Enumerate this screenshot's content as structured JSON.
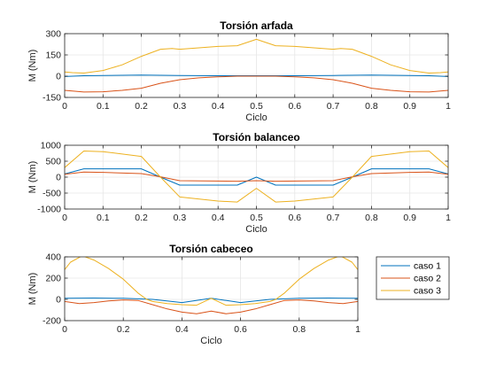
{
  "chart_data": [
    {
      "type": "line",
      "title": "Torsión arfada",
      "xlabel": "Ciclo",
      "ylabel": "M (Nm)",
      "xlim": [
        0,
        1
      ],
      "ylim": [
        -150,
        300
      ],
      "xticks": [
        0,
        0.1,
        0.2,
        0.3,
        0.4,
        0.5,
        0.6,
        0.7,
        0.8,
        0.9,
        1
      ],
      "xtick_labels": [
        "0",
        "0.1",
        "0.2",
        "0.3",
        "0.4",
        "0.5",
        "0.6",
        "0.7",
        "0.8",
        "0.9",
        "1"
      ],
      "yticks": [
        -150,
        0,
        150,
        300
      ],
      "ytick_labels": [
        "-150",
        "0",
        "150",
        "300"
      ],
      "grid": true,
      "series": [
        {
          "name": "caso 1",
          "color": "#0072BD",
          "x": [
            0,
            0.05,
            0.1,
            0.2,
            0.3,
            0.4,
            0.5,
            0.6,
            0.7,
            0.8,
            0.9,
            0.95,
            1
          ],
          "y": [
            -2,
            3,
            5,
            8,
            5,
            3,
            3,
            3,
            5,
            8,
            5,
            3,
            -2
          ]
        },
        {
          "name": "caso 2",
          "color": "#D95319",
          "x": [
            0,
            0.05,
            0.1,
            0.15,
            0.2,
            0.25,
            0.3,
            0.35,
            0.4,
            0.45,
            0.5,
            0.55,
            0.6,
            0.65,
            0.7,
            0.75,
            0.8,
            0.85,
            0.9,
            0.95,
            1
          ],
          "y": [
            -100,
            -112,
            -110,
            -100,
            -85,
            -50,
            -25,
            -12,
            -5,
            0,
            0,
            0,
            -5,
            -12,
            -25,
            -50,
            -85,
            -100,
            -110,
            -112,
            -100
          ]
        },
        {
          "name": "caso 3",
          "color": "#EDB120",
          "x": [
            0,
            0.02,
            0.05,
            0.1,
            0.15,
            0.2,
            0.25,
            0.28,
            0.3,
            0.35,
            0.4,
            0.45,
            0.5,
            0.55,
            0.6,
            0.65,
            0.7,
            0.72,
            0.75,
            0.8,
            0.85,
            0.9,
            0.95,
            0.98,
            1
          ],
          "y": [
            30,
            25,
            22,
            40,
            80,
            140,
            190,
            195,
            190,
            200,
            210,
            215,
            260,
            215,
            210,
            200,
            190,
            195,
            190,
            140,
            80,
            40,
            22,
            25,
            30
          ]
        }
      ]
    },
    {
      "type": "line",
      "title": "Torsión balanceo",
      "xlabel": "Ciclo",
      "ylabel": "M (Nm)",
      "xlim": [
        0,
        1
      ],
      "ylim": [
        -1000,
        1000
      ],
      "xticks": [
        0,
        0.1,
        0.2,
        0.3,
        0.4,
        0.5,
        0.6,
        0.7,
        0.8,
        0.9,
        1
      ],
      "xtick_labels": [
        "0",
        "0.1",
        "0.2",
        "0.3",
        "0.4",
        "0.5",
        "0.6",
        "0.7",
        "0.8",
        "0.9",
        "1"
      ],
      "yticks": [
        -1000,
        -500,
        0,
        500,
        1000
      ],
      "ytick_labels": [
        "-1000",
        "-500",
        "0",
        "500",
        "1000"
      ],
      "grid": true,
      "series": [
        {
          "name": "caso 1",
          "color": "#0072BD",
          "x": [
            0,
            0.05,
            0.1,
            0.2,
            0.25,
            0.3,
            0.45,
            0.5,
            0.55,
            0.7,
            0.75,
            0.8,
            0.9,
            0.95,
            1
          ],
          "y": [
            100,
            260,
            260,
            260,
            0,
            -250,
            -250,
            0,
            -250,
            -250,
            0,
            260,
            260,
            260,
            100
          ]
        },
        {
          "name": "caso 2",
          "color": "#D95319",
          "x": [
            0,
            0.05,
            0.1,
            0.2,
            0.25,
            0.3,
            0.45,
            0.5,
            0.55,
            0.7,
            0.75,
            0.8,
            0.9,
            0.95,
            1
          ],
          "y": [
            90,
            160,
            150,
            110,
            10,
            -110,
            -130,
            -110,
            -130,
            -110,
            10,
            110,
            150,
            160,
            90
          ]
        },
        {
          "name": "caso 3",
          "color": "#EDB120",
          "x": [
            0,
            0.05,
            0.1,
            0.2,
            0.25,
            0.3,
            0.4,
            0.45,
            0.5,
            0.55,
            0.6,
            0.7,
            0.75,
            0.8,
            0.9,
            0.95,
            1
          ],
          "y": [
            300,
            820,
            800,
            650,
            0,
            -620,
            -750,
            -780,
            -350,
            -780,
            -750,
            -620,
            0,
            650,
            800,
            820,
            300
          ]
        }
      ]
    },
    {
      "type": "line",
      "title": "Torsión cabeceo",
      "xlabel": "Ciclo",
      "ylabel": "M (Nm)",
      "xlim": [
        0,
        1
      ],
      "ylim": [
        -200,
        400
      ],
      "xticks": [
        0,
        0.2,
        0.4,
        0.6,
        0.8,
        1
      ],
      "xtick_labels": [
        "0",
        "0.2",
        "0.4",
        "0.6",
        "0.8",
        "1"
      ],
      "yticks": [
        -200,
        0,
        200,
        400
      ],
      "ytick_labels": [
        "-200",
        "0",
        "200",
        "400"
      ],
      "grid": true,
      "legend": {
        "placement": "outside-right",
        "entries": [
          "caso 1",
          "caso 2",
          "caso 3"
        ]
      },
      "series": [
        {
          "name": "caso 1",
          "color": "#0072BD",
          "x": [
            0,
            0.1,
            0.2,
            0.3,
            0.4,
            0.5,
            0.6,
            0.7,
            0.8,
            0.9,
            1
          ],
          "y": [
            10,
            12,
            10,
            0,
            -30,
            10,
            -30,
            0,
            10,
            12,
            10
          ]
        },
        {
          "name": "caso 2",
          "color": "#D95319",
          "x": [
            0,
            0.05,
            0.1,
            0.15,
            0.2,
            0.25,
            0.3,
            0.35,
            0.4,
            0.45,
            0.5,
            0.55,
            0.6,
            0.65,
            0.7,
            0.75,
            0.8,
            0.85,
            0.9,
            0.95,
            1
          ],
          "y": [
            -20,
            -40,
            -30,
            -15,
            -5,
            -10,
            -50,
            -90,
            -120,
            -135,
            -110,
            -135,
            -120,
            -90,
            -50,
            -10,
            -5,
            -15,
            -30,
            -40,
            -20
          ]
        },
        {
          "name": "caso 3",
          "color": "#EDB120",
          "x": [
            0,
            0.02,
            0.06,
            0.1,
            0.15,
            0.2,
            0.25,
            0.28,
            0.3,
            0.35,
            0.4,
            0.45,
            0.5,
            0.55,
            0.6,
            0.65,
            0.7,
            0.72,
            0.75,
            0.8,
            0.85,
            0.9,
            0.94,
            0.98,
            1
          ],
          "y": [
            280,
            350,
            410,
            370,
            290,
            190,
            60,
            0,
            -20,
            -40,
            -50,
            -55,
            10,
            -55,
            -50,
            -40,
            -20,
            0,
            60,
            190,
            290,
            370,
            410,
            350,
            280
          ]
        }
      ]
    }
  ]
}
